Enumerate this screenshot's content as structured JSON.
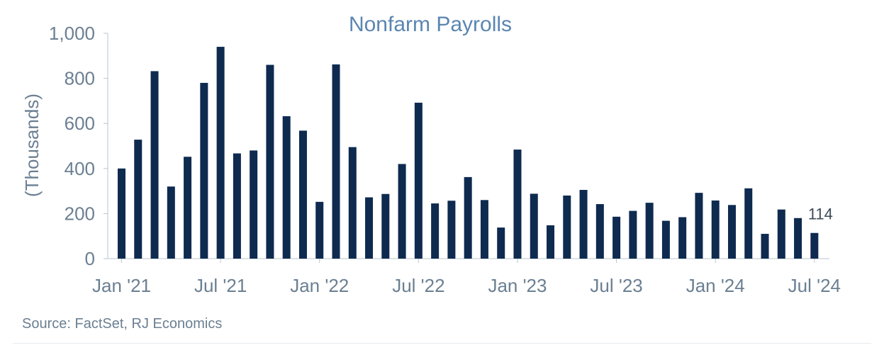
{
  "colors": {
    "bar": "#0e2a4f",
    "title": "#5b86b1",
    "axis_text": "#6b7f92",
    "axis_line": "#b9c4cf"
  },
  "source": "Source: FactSet, RJ Economics",
  "chart_data": {
    "type": "bar",
    "title": "Nonfarm Payrolls",
    "ylabel": "(Thousands)",
    "xlabel": "",
    "ylim": [
      0,
      1000
    ],
    "yticks": [
      0,
      200,
      400,
      600,
      800,
      1000
    ],
    "ytick_labels": [
      "0",
      "200",
      "400",
      "600",
      "800",
      "1,000"
    ],
    "xtick_labels": [
      {
        "index": 0,
        "label": "Jan '21"
      },
      {
        "index": 6,
        "label": "Jul '21"
      },
      {
        "index": 12,
        "label": "Jan '22"
      },
      {
        "index": 18,
        "label": "Jul '22"
      },
      {
        "index": 24,
        "label": "Jan '23"
      },
      {
        "index": 30,
        "label": "Jul '23"
      },
      {
        "index": 36,
        "label": "Jan '24"
      },
      {
        "index": 42,
        "label": "Jul '24"
      }
    ],
    "categories": [
      "2021-01",
      "2021-02",
      "2021-03",
      "2021-04",
      "2021-05",
      "2021-06",
      "2021-07",
      "2021-08",
      "2021-09",
      "2021-10",
      "2021-11",
      "2021-12",
      "2022-01",
      "2022-02",
      "2022-03",
      "2022-04",
      "2022-05",
      "2022-06",
      "2022-07",
      "2022-08",
      "2022-09",
      "2022-10",
      "2022-11",
      "2022-12",
      "2023-01",
      "2023-02",
      "2023-03",
      "2023-04",
      "2023-05",
      "2023-06",
      "2023-07",
      "2023-08",
      "2023-09",
      "2023-10",
      "2023-11",
      "2023-12",
      "2024-01",
      "2024-02",
      "2024-03",
      "2024-04",
      "2024-05",
      "2024-06",
      "2024-07"
    ],
    "values": [
      400,
      528,
      832,
      320,
      452,
      780,
      940,
      467,
      480,
      860,
      632,
      568,
      252,
      862,
      495,
      272,
      287,
      420,
      692,
      245,
      257,
      362,
      260,
      138,
      484,
      288,
      148,
      280,
      305,
      242,
      186,
      212,
      248,
      168,
      184,
      292,
      258,
      238,
      312,
      110,
      218,
      180,
      114
    ],
    "annotations": [
      {
        "index": 42,
        "text": "114"
      }
    ]
  }
}
